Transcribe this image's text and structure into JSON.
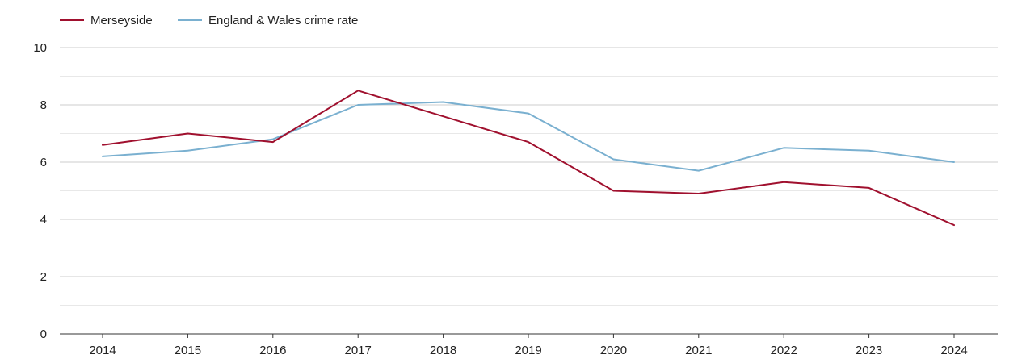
{
  "chart_data": {
    "type": "line",
    "title": "",
    "xlabel": "",
    "ylabel": "",
    "categories": [
      "2014",
      "2015",
      "2016",
      "2017",
      "2018",
      "2019",
      "2020",
      "2021",
      "2022",
      "2023",
      "2024"
    ],
    "ylim": [
      0,
      10
    ],
    "yticks": [
      "0",
      "2",
      "4",
      "6",
      "8",
      "10"
    ],
    "grid": true,
    "legend_position": "top-left",
    "series": [
      {
        "name": "Merseyside",
        "color": "#a0102e",
        "values": [
          6.6,
          7.0,
          6.7,
          8.5,
          7.6,
          6.7,
          5.0,
          4.9,
          5.3,
          5.1,
          3.8
        ]
      },
      {
        "name": "England & Wales crime rate",
        "color": "#7ab0d0",
        "values": [
          6.2,
          6.4,
          6.8,
          8.0,
          8.1,
          7.7,
          6.1,
          5.7,
          6.5,
          6.4,
          6.0
        ]
      }
    ]
  }
}
